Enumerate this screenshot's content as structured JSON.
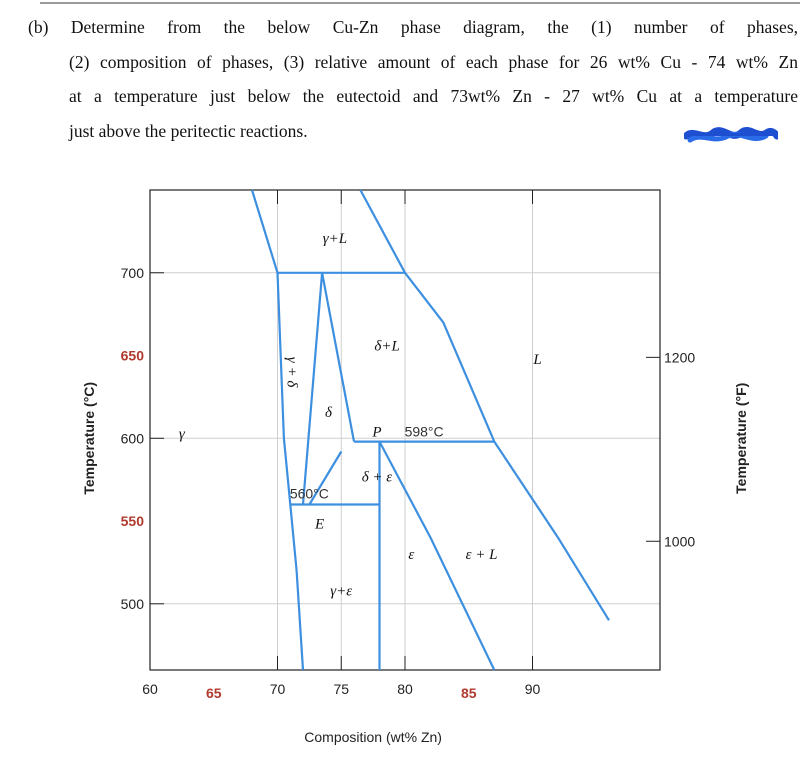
{
  "question": {
    "label": "(b)",
    "lines": [
      "Determine from the below Cu-Zn phase diagram, the (1) number of phases,",
      "(2) composition of phases, (3) relative amount of each phase for 26 wt% Cu - 74 wt% Zn",
      "at a temperature just below the eutectoid and 73wt% Zn - 27 wt% Cu at a temperature",
      "just above the peritectic reactions."
    ]
  },
  "chart_data": {
    "type": "phase-diagram",
    "system": "Cu-Zn",
    "xlabel": "Composition (wt% Zn)",
    "ylabel_left": "Temperature (°C)",
    "ylabel_right": "Temperature (°F)",
    "xlim": [
      60,
      100
    ],
    "ylim": [
      460,
      750
    ],
    "x_ticks_black": [
      60,
      70,
      75,
      80,
      90
    ],
    "x_ticks_red": [
      65,
      85
    ],
    "y_ticks_black": [
      500,
      600,
      700
    ],
    "y_ticks_red": [
      550,
      650
    ],
    "y_right_ticks": [
      1000,
      1200
    ],
    "grid": true,
    "line_color": "#3d8fe0",
    "phase_labels": [
      "γ",
      "γ+L",
      "γ + δ",
      "δ",
      "δ+L",
      "δ + ε",
      "γ+ε",
      "ε",
      "ε + L",
      "L"
    ],
    "invariant_points": [
      {
        "name": "P",
        "temperature_c": 598,
        "label": "598°C"
      },
      {
        "name": "E",
        "temperature_c": 560,
        "label": "560°C"
      }
    ],
    "boundaries": [
      {
        "name": "gamma-liquidus",
        "points": [
          [
            68,
            750
          ],
          [
            70,
            700
          ]
        ]
      },
      {
        "name": "gamma-solvus",
        "points": [
          [
            70,
            700
          ],
          [
            70.5,
            600
          ],
          [
            71,
            560
          ],
          [
            71.5,
            520
          ],
          [
            72,
            460
          ]
        ]
      },
      {
        "name": "L-liquidus",
        "points": [
          [
            76.5,
            750
          ],
          [
            80,
            700
          ],
          [
            83,
            670
          ],
          [
            87,
            598
          ],
          [
            92,
            540
          ],
          [
            96,
            490
          ]
        ]
      },
      {
        "name": "gamma+delta-right",
        "points": [
          [
            73.5,
            700
          ],
          [
            72,
            560
          ]
        ]
      },
      {
        "name": "delta-top",
        "points": [
          [
            73.5,
            700
          ],
          [
            76,
            598
          ]
        ]
      },
      {
        "name": "delta-eps-left",
        "points": [
          [
            72.5,
            560
          ],
          [
            75,
            592
          ]
        ]
      },
      {
        "name": "eps-left-vertical",
        "points": [
          [
            78,
            598
          ],
          [
            78,
            460
          ]
        ]
      },
      {
        "name": "eps-right",
        "points": [
          [
            78,
            598
          ],
          [
            82,
            540
          ],
          [
            87,
            460
          ]
        ]
      },
      {
        "name": "isotherm-700",
        "points": [
          [
            70,
            700
          ],
          [
            80,
            700
          ]
        ]
      },
      {
        "name": "isotherm-598",
        "points": [
          [
            76,
            598
          ],
          [
            87,
            598
          ]
        ]
      },
      {
        "name": "isotherm-560",
        "points": [
          [
            71,
            560
          ],
          [
            78,
            560
          ]
        ]
      }
    ]
  }
}
